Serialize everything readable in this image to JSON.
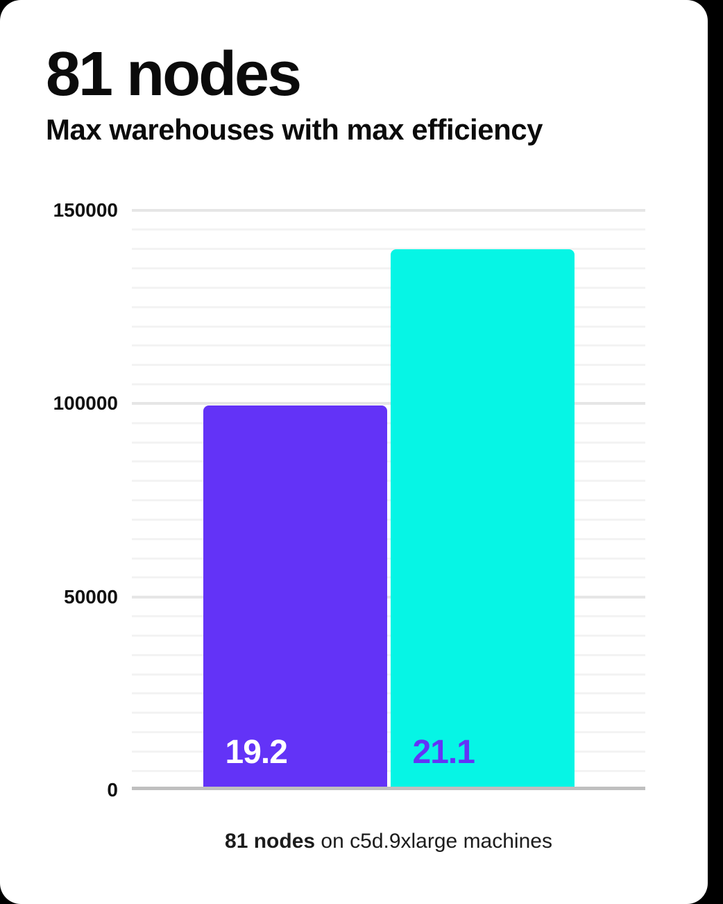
{
  "card": {
    "title": "81 nodes",
    "subtitle": "Max warehouses with max efficiency",
    "caption_bold": "81 nodes",
    "caption_rest": " on c5d.9xlarge machines"
  },
  "chart_data": {
    "type": "bar",
    "title": "81 nodes",
    "subtitle": "Max warehouses with max efficiency",
    "categories": [
      "19.2",
      "21.1"
    ],
    "values": [
      99500,
      139900
    ],
    "bar_labels": [
      "19.2",
      "21.1"
    ],
    "bar_colors": [
      "#6333f7",
      "#06f5e5"
    ],
    "bar_label_colors": [
      "#ffffff",
      "#6333f7"
    ],
    "xlabel": "",
    "ylabel": "",
    "ylim": [
      0,
      150000
    ],
    "yticks": [
      0,
      50000,
      100000,
      150000
    ],
    "ytick_labels": [
      "0",
      "50000",
      "100000",
      "150000"
    ],
    "minor_step": 5000,
    "major_step": 50000,
    "grid": true,
    "legend": false,
    "annotation": "81 nodes on c5d.9xlarge machines"
  },
  "colors": {
    "card_background": "#ffffff",
    "purple_accent": "#6333f7",
    "cyan_accent": "#06f5e5",
    "text": "#0b0b0b",
    "axis_line": "#bfbfbf"
  }
}
